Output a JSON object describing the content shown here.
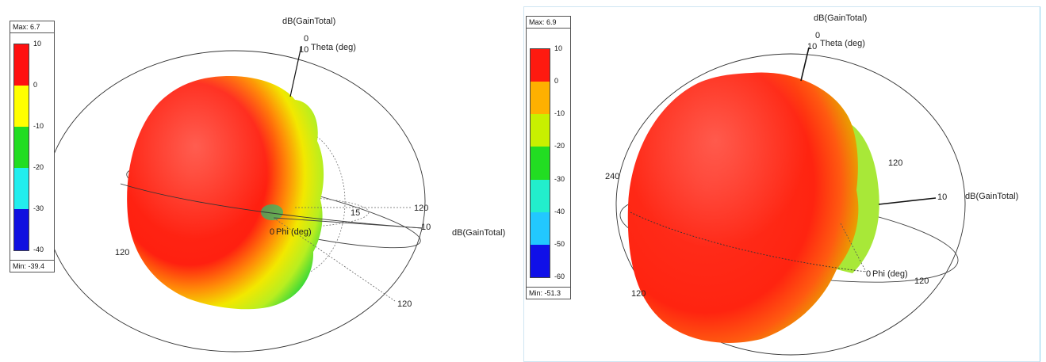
{
  "chart_data": [
    {
      "type": "3d-radiation-pattern",
      "title": "dB(GainTotal)",
      "quantity": "dB(GainTotal)",
      "legend": {
        "max_label": "Max: 6.7",
        "min_label": "Min: -39.4",
        "max": 6.7,
        "min": -39.4,
        "ticks": [
          "10",
          "0",
          "-10",
          "-20",
          "-30",
          "-40"
        ],
        "colors": [
          "#ff1010",
          "#ffff00",
          "#22dd22",
          "#22eeee",
          "#1010e0"
        ]
      },
      "axes": {
        "theta_label": "Theta (deg)",
        "phi_label": "Phi (deg)",
        "theta_zero": "0",
        "phi_zero": "0",
        "ring_labels": [
          "10",
          "15",
          "120",
          "120",
          "10",
          "120"
        ]
      }
    },
    {
      "type": "3d-radiation-pattern",
      "title": "dB(GainTotal)",
      "quantity": "dB(GainTotal)",
      "legend": {
        "max_label": "Max: 6.9",
        "min_label": "Min: -51.3",
        "max": 6.9,
        "min": -51.3,
        "ticks": [
          "10",
          "0",
          "-10",
          "-20",
          "-30",
          "-40",
          "-50",
          "-60"
        ],
        "colors": [
          "#ff1a10",
          "#ffb000",
          "#c8f000",
          "#22dd22",
          "#22eecc",
          "#22c8ff",
          "#1010e8"
        ]
      },
      "axes": {
        "theta_label": "Theta (deg)",
        "phi_label": "Phi (deg)",
        "theta_zero": "0",
        "phi_zero": "0",
        "ring_labels": [
          "10",
          "120",
          "240",
          "10",
          "120",
          "120"
        ]
      }
    }
  ]
}
